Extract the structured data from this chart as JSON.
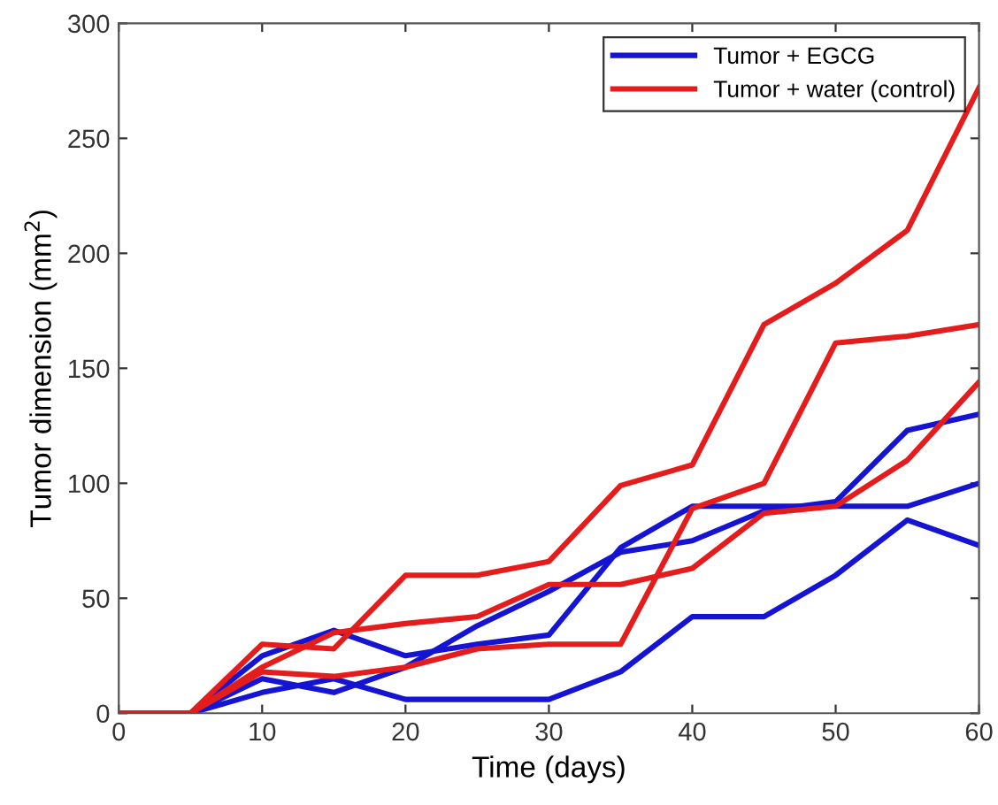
{
  "chart_data": {
    "type": "line",
    "xlabel": "Time (days)",
    "ylabel": "Tumor dimension (mm$^{2}$)",
    "x": [
      0,
      5,
      10,
      15,
      20,
      25,
      30,
      35,
      40,
      45,
      50,
      55,
      60
    ],
    "series": [
      {
        "name": "Tumor + EGCG",
        "color": "#1414d2",
        "values": [
          0,
          0,
          25,
          36,
          25,
          30,
          34,
          72,
          90,
          90,
          90,
          90,
          100
        ]
      },
      {
        "name": "Tumor + water (control)",
        "color": "#e41c1c",
        "values": [
          0,
          0,
          30,
          28,
          60,
          60,
          66,
          99,
          108,
          169,
          187,
          210,
          272
        ]
      },
      {
        "color": "#1414d2",
        "values": [
          0,
          0,
          15,
          9,
          20,
          38,
          53,
          70,
          75,
          88,
          92,
          123,
          130
        ]
      },
      {
        "color": "#1414d2",
        "values": [
          0,
          0,
          9,
          15,
          6,
          6,
          6,
          18,
          42,
          42,
          60,
          84,
          73
        ]
      },
      {
        "color": "#e41c1c",
        "values": [
          0,
          0,
          20,
          35,
          39,
          42,
          56,
          56,
          63,
          87,
          90,
          110,
          144
        ]
      },
      {
        "color": "#e41c1c",
        "values": [
          0,
          0,
          18,
          16,
          20,
          28,
          30,
          30,
          89,
          100,
          161,
          164,
          169
        ]
      }
    ],
    "xlim": [
      0,
      60
    ],
    "xticks": [
      0,
      10,
      20,
      30,
      40,
      50,
      60
    ],
    "ylim": [
      0,
      300
    ],
    "yticks": [
      0,
      50,
      100,
      150,
      200,
      250,
      300
    ],
    "grid": false,
    "legend": "top right",
    "line_style": "solid"
  }
}
